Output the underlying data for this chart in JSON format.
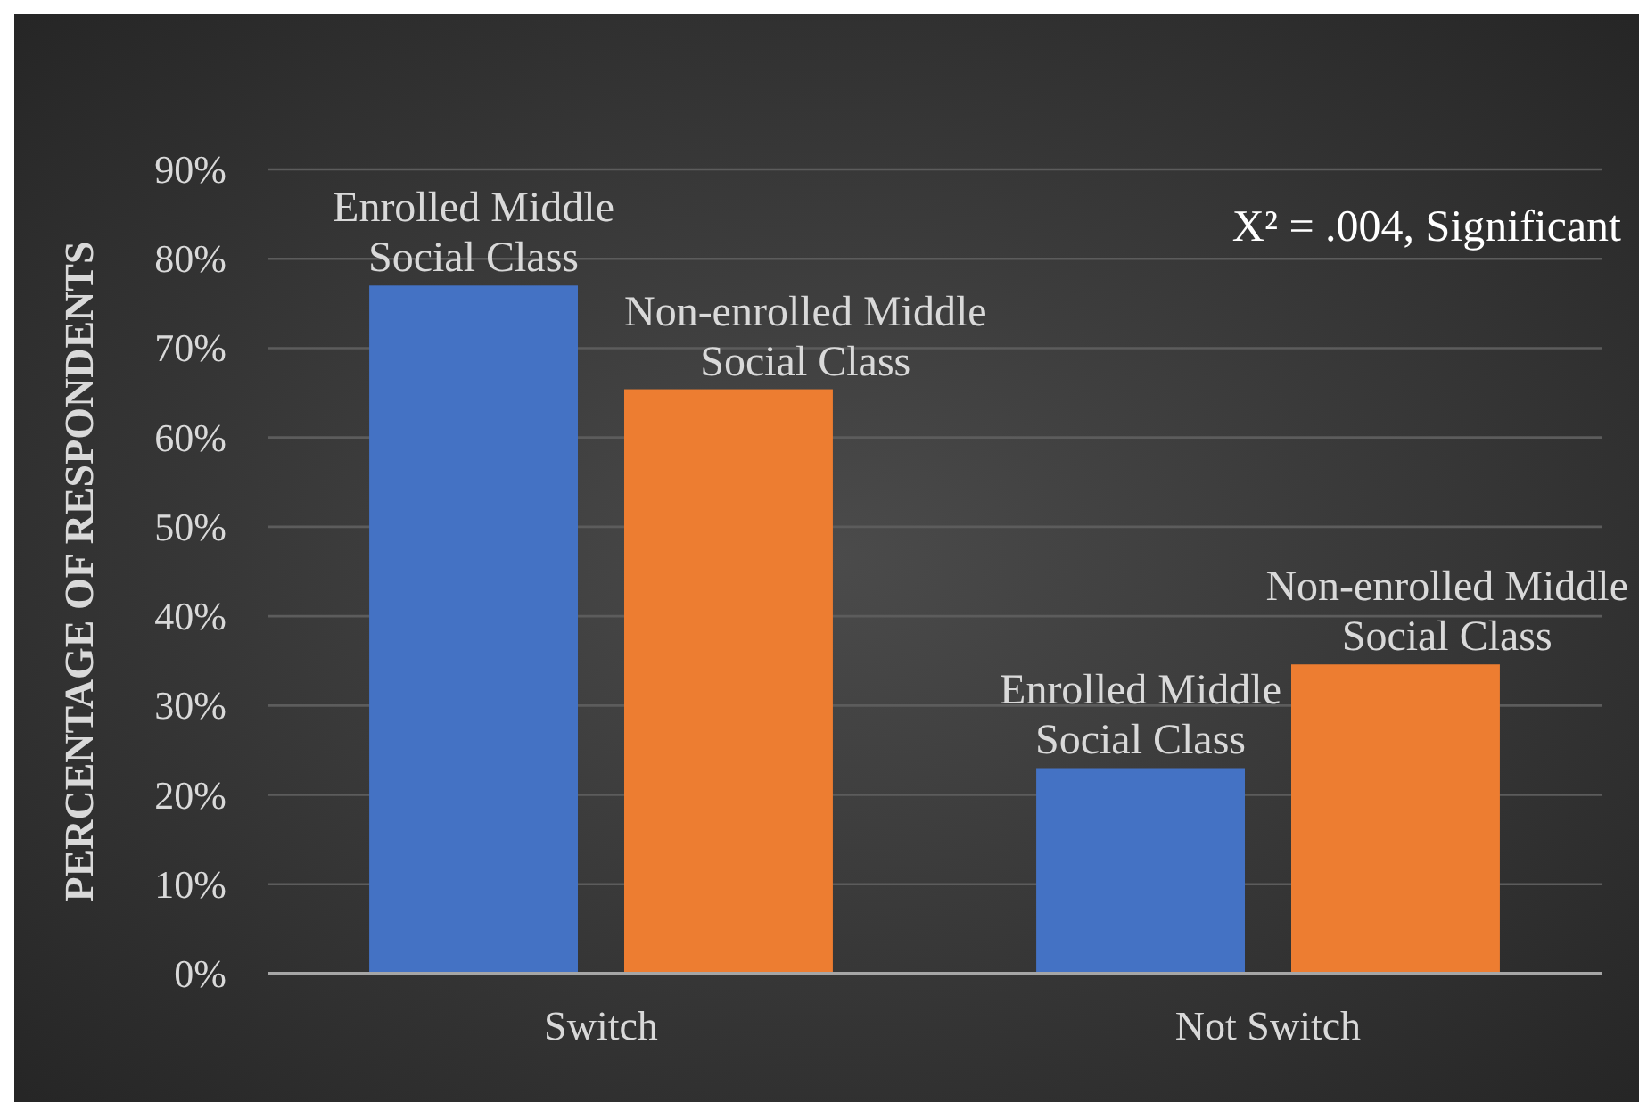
{
  "chart_data": {
    "type": "bar",
    "categories": [
      "Switch",
      "Not Switch"
    ],
    "series": [
      {
        "name": "Enrolled Middle Social Class",
        "color": "#4472c4",
        "values": [
          77,
          23
        ]
      },
      {
        "name": "Non-enrolled Middle Social Class",
        "color": "#ed7d31",
        "values": [
          65.4,
          34.6
        ]
      }
    ],
    "ylabel": "PERCENTAGE OF RESPONDENTS",
    "ylim": [
      0,
      90
    ],
    "yticks": [
      {
        "value": 0,
        "label": "0%"
      },
      {
        "value": 10,
        "label": "10%"
      },
      {
        "value": 20,
        "label": "20%"
      },
      {
        "value": 30,
        "label": "30%"
      },
      {
        "value": 40,
        "label": "40%"
      },
      {
        "value": 50,
        "label": "50%"
      },
      {
        "value": 60,
        "label": "60%"
      },
      {
        "value": 70,
        "label": "70%"
      },
      {
        "value": 80,
        "label": "80%"
      },
      {
        "value": 90,
        "label": "90%"
      }
    ],
    "grid": "y",
    "annotations": [
      "X² = .004, Significant"
    ]
  }
}
